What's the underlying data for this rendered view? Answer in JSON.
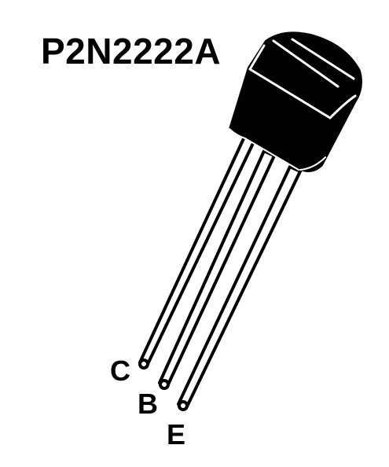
{
  "part_number": "P2N2222A",
  "pins": {
    "collector": "C",
    "base": "B",
    "emitter": "E"
  },
  "colors": {
    "body": "#000000",
    "lead_fill": "#ffffff",
    "lead_outline": "#000000",
    "background": "#ffffff"
  }
}
